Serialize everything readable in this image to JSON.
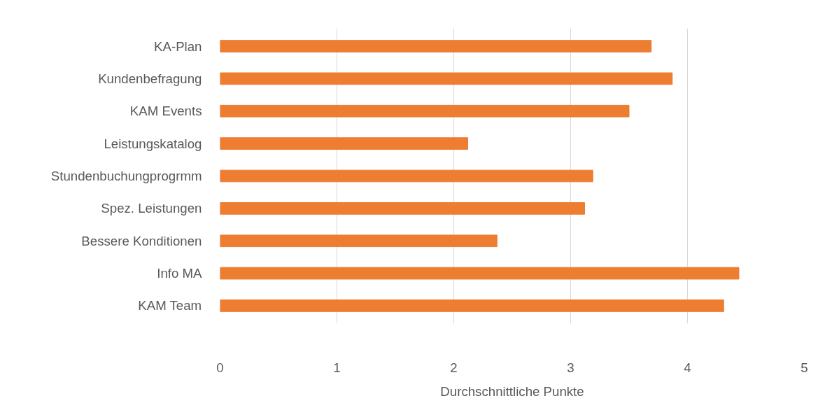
{
  "chart_data": {
    "type": "bar",
    "orientation": "horizontal",
    "xlabel": "Durchschnittliche Punkte",
    "categories": [
      "KA-Plan",
      "Kundenbefragung",
      "KAM Events",
      "Leistungskatalog",
      "Stundenbuchungprogrmm",
      "Spez. Leistungen",
      "Bessere Konditionen",
      "Info MA",
      "KAM Team"
    ],
    "values": [
      3.69,
      3.87,
      3.5,
      2.12,
      3.19,
      3.12,
      2.37,
      4.44,
      4.31
    ],
    "color": "#ed7d31",
    "xlim": [
      0,
      5
    ],
    "xticks": [
      0,
      1,
      2,
      3,
      4,
      5
    ],
    "grid": "x"
  }
}
